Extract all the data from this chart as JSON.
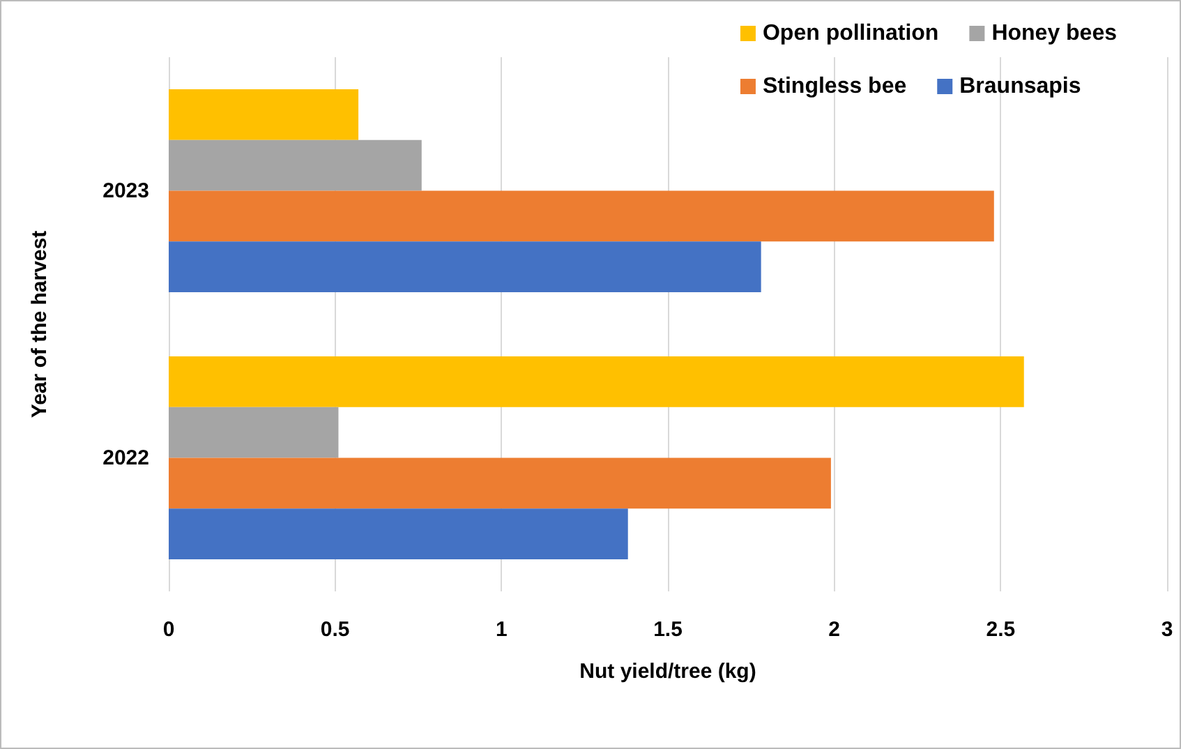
{
  "chart_data": {
    "type": "bar",
    "orientation": "horizontal",
    "xlabel": "Nut yield/tree (kg)",
    "ylabel": "Year of the harvest",
    "categories": [
      "2023",
      "2022"
    ],
    "series": [
      {
        "name": "Open pollination",
        "color": "#ffc000",
        "values": [
          0.57,
          2.57
        ]
      },
      {
        "name": "Honey bees",
        "color": "#a5a5a5",
        "values": [
          0.76,
          0.51
        ]
      },
      {
        "name": "Stingless bee",
        "color": "#ed7d31",
        "values": [
          2.48,
          1.99
        ]
      },
      {
        "name": "Braunsapis",
        "color": "#4472c4",
        "values": [
          1.78,
          1.38
        ]
      }
    ],
    "xlim": [
      0,
      3
    ],
    "xticks": [
      0,
      0.5,
      1,
      1.5,
      2,
      2.5,
      3
    ],
    "grid": "x",
    "legend": "top right"
  }
}
